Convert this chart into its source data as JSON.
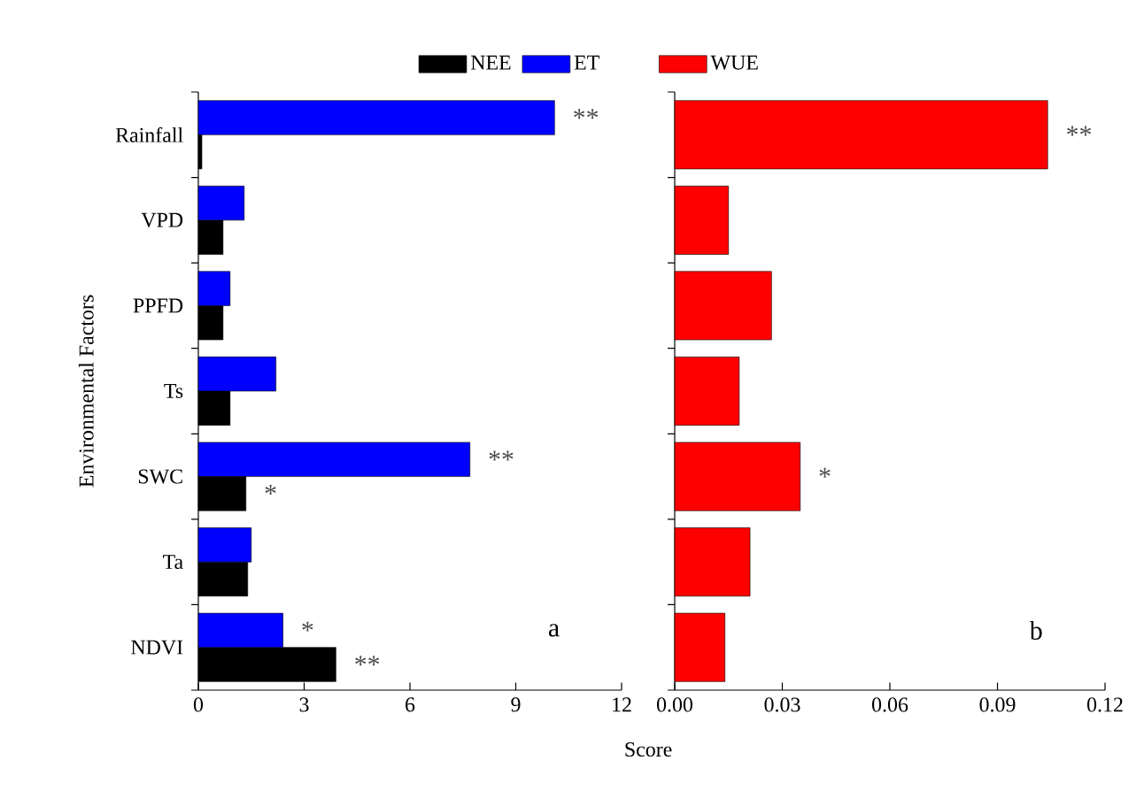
{
  "chart_data": [
    {
      "type": "bar",
      "orientation": "horizontal",
      "xlabel": "Score",
      "ylabel": "Environmental Factors",
      "legend": "top",
      "categories": [
        "Rainfall",
        "VPD",
        "PPFD",
        "Ts",
        "SWC",
        "Ta",
        "NDVI"
      ],
      "series": [
        {
          "name": "NEE",
          "color": "#000000",
          "values": [
            0.1,
            0.7,
            0.7,
            0.9,
            1.35,
            1.4,
            3.9
          ]
        },
        {
          "name": "ET",
          "color": "#0000ff",
          "values": [
            10.1,
            1.3,
            0.9,
            2.2,
            7.7,
            1.5,
            2.4
          ]
        }
      ],
      "xlim": [
        0,
        12
      ],
      "xticks": [
        0,
        3,
        6,
        9,
        12
      ],
      "annotations": [
        {
          "text": "**",
          "x": 10.1,
          "y": "Rainfall"
        },
        {
          "text": "**",
          "x": 7.7,
          "y": "SWC"
        },
        {
          "text": "*",
          "x": 1.35,
          "y": "SWC"
        },
        {
          "text": "*",
          "x": 2.4,
          "y": "NDVI"
        },
        {
          "text": "**",
          "x": 3.9,
          "y": "NDVI"
        },
        "a"
      ]
    },
    {
      "type": "bar",
      "orientation": "horizontal",
      "legend": "top",
      "tick_labels": "x",
      "categories": [
        "Rainfall",
        "VPD",
        "PPFD",
        "Ts",
        "SWC",
        "Ta",
        "NDVI"
      ],
      "series": [
        {
          "name": "WUE",
          "color": "#ff0000",
          "values": [
            0.104,
            0.015,
            0.027,
            0.018,
            0.035,
            0.021,
            0.014
          ]
        }
      ],
      "xlim": [
        0,
        0.12
      ],
      "xticks": [
        {
          "value": 0,
          "label": "0.00"
        },
        0.03,
        0.06,
        0.09,
        0.12
      ],
      "annotations": [
        {
          "text": "**",
          "x": 0.104,
          "y": "Rainfall"
        },
        {
          "text": "*",
          "x": 0.035,
          "y": "SWC"
        },
        "b"
      ]
    }
  ]
}
